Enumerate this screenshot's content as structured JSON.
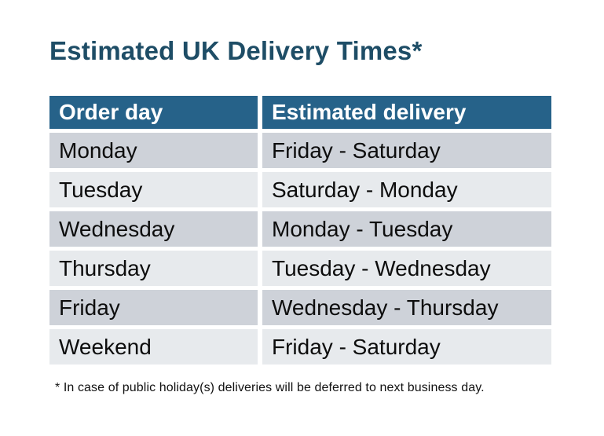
{
  "title": "Estimated UK Delivery Times*",
  "table": {
    "headers": [
      "Order day",
      "Estimated delivery"
    ],
    "rows": [
      {
        "order_day": "Monday",
        "estimated_delivery": "Friday - Saturday"
      },
      {
        "order_day": "Tuesday",
        "estimated_delivery": "Saturday - Monday"
      },
      {
        "order_day": "Wednesday",
        "estimated_delivery": "Monday - Tuesday"
      },
      {
        "order_day": "Thursday",
        "estimated_delivery": "Tuesday - Wednesday"
      },
      {
        "order_day": "Friday",
        "estimated_delivery": "Wednesday - Thursday"
      },
      {
        "order_day": "Weekend",
        "estimated_delivery": "Friday - Saturday"
      }
    ]
  },
  "footnote": "* In case of public holiday(s) deliveries will be deferred to next business day.",
  "colors": {
    "title": "#1e4d66",
    "header_bg": "#266289",
    "header_text": "#ffffff",
    "row_dark": "#ced2d9",
    "row_light": "#e7eaed",
    "cell_text": "#0d0d0d",
    "page_bg": "#ffffff"
  }
}
